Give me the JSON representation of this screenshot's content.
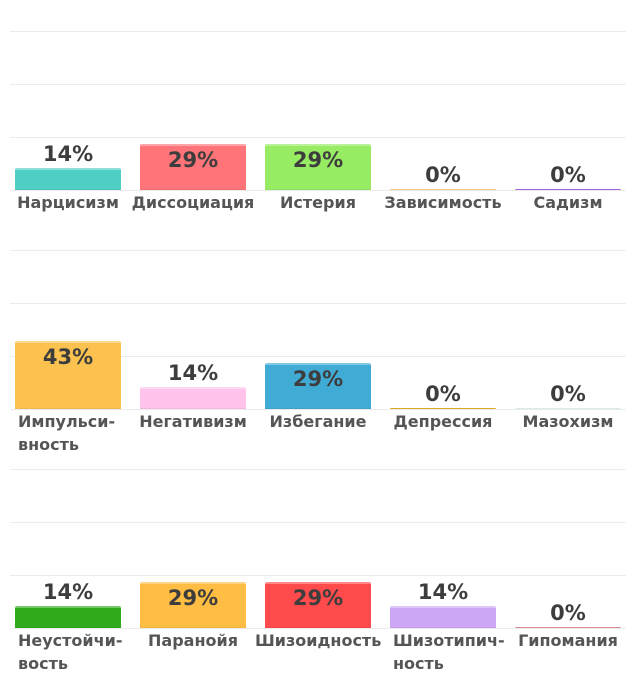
{
  "chart_data": [
    {
      "type": "bar",
      "categories": [
        "Нарцисизм",
        "Диссоциация",
        "Истерия",
        "Зависимость",
        "Садизм"
      ],
      "category_labels": [
        "Нарцисизм",
        "Диссоциация",
        "Истерия",
        "Зависимость",
        "Садизм"
      ],
      "values": [
        14,
        29,
        29,
        0,
        0
      ],
      "value_labels": [
        "14%",
        "29%",
        "29%",
        "0%",
        "0%"
      ],
      "colors": [
        "#4fcfc4",
        "#ff7478",
        "#97ec63",
        "#f2c186",
        "#a463e0"
      ]
    },
    {
      "type": "bar",
      "categories": [
        "Импульсивность",
        "Негативизм",
        "Избегание",
        "Депрессия",
        "Мазохизм"
      ],
      "category_labels": [
        "Импульси-\nвность",
        "Негативизм",
        "Избегание",
        "Депрессия",
        "Мазохизм"
      ],
      "values": [
        43,
        14,
        29,
        0,
        0
      ],
      "value_labels": [
        "43%",
        "14%",
        "29%",
        "0%",
        "0%"
      ],
      "colors": [
        "#fbc24f",
        "#ffc3ec",
        "#40acd6",
        "#dda925",
        "#d8ecec"
      ]
    },
    {
      "type": "bar",
      "categories": [
        "Неустойчивость",
        "Паранойя",
        "Шизоидность",
        "Шизотипичность",
        "Гипомания"
      ],
      "category_labels": [
        "Неустойчи-\nвость",
        "Паранойя",
        "Шизоидность",
        "Шизотипич-\nность",
        "Гипомания"
      ],
      "values": [
        14,
        29,
        29,
        14,
        0
      ],
      "value_labels": [
        "14%",
        "29%",
        "29%",
        "14%",
        "0%"
      ],
      "colors": [
        "#2eaa1a",
        "#ffbd43",
        "#ff4b4b",
        "#cda7f5",
        "#dd8a92"
      ]
    }
  ]
}
